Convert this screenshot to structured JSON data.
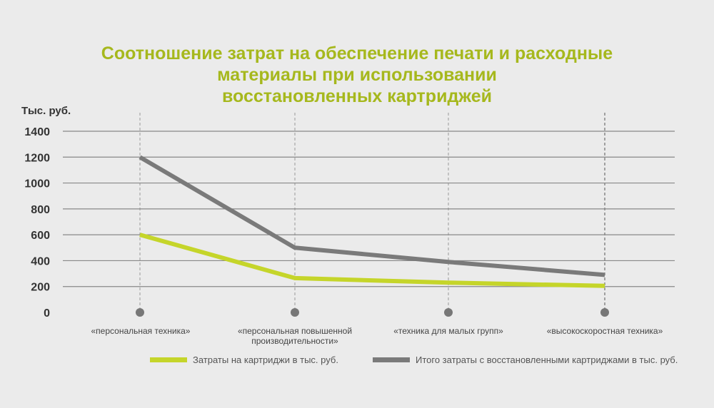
{
  "title_lines": [
    "Соотношение затрат на обеспечение печати и расходные",
    "материалы при использовании",
    "восстановленных картриджей"
  ],
  "colors": {
    "accent": "#a6b81d",
    "series_a": "#c5d52a",
    "series_b": "#7a7a7a",
    "grid": "#888888",
    "background": "#ebebeb"
  },
  "chart_data": {
    "type": "line",
    "title": "Соотношение затрат на обеспечение печати и расходные материалы при использовании восстановленных картриджей",
    "ylabel": "Тыс. руб.",
    "xlabel": "",
    "ylim": [
      0,
      1400
    ],
    "yticks": [
      "0",
      "200",
      "400",
      "600",
      "800",
      "1000",
      "1200",
      "1400"
    ],
    "grid": true,
    "legend_position": "bottom",
    "categories": [
      "«персональная техника»",
      "«персональная повышенной производительности»",
      "«техника для малых групп»",
      "«высокоскоростная техника»"
    ],
    "series": [
      {
        "name": "Затраты на картриджи в тыс. руб.",
        "values": [
          600,
          265,
          230,
          205
        ]
      },
      {
        "name": "Итого  затраты с восстановленными картриджами в тыс. руб.",
        "values": [
          1200,
          500,
          390,
          290
        ]
      }
    ]
  }
}
